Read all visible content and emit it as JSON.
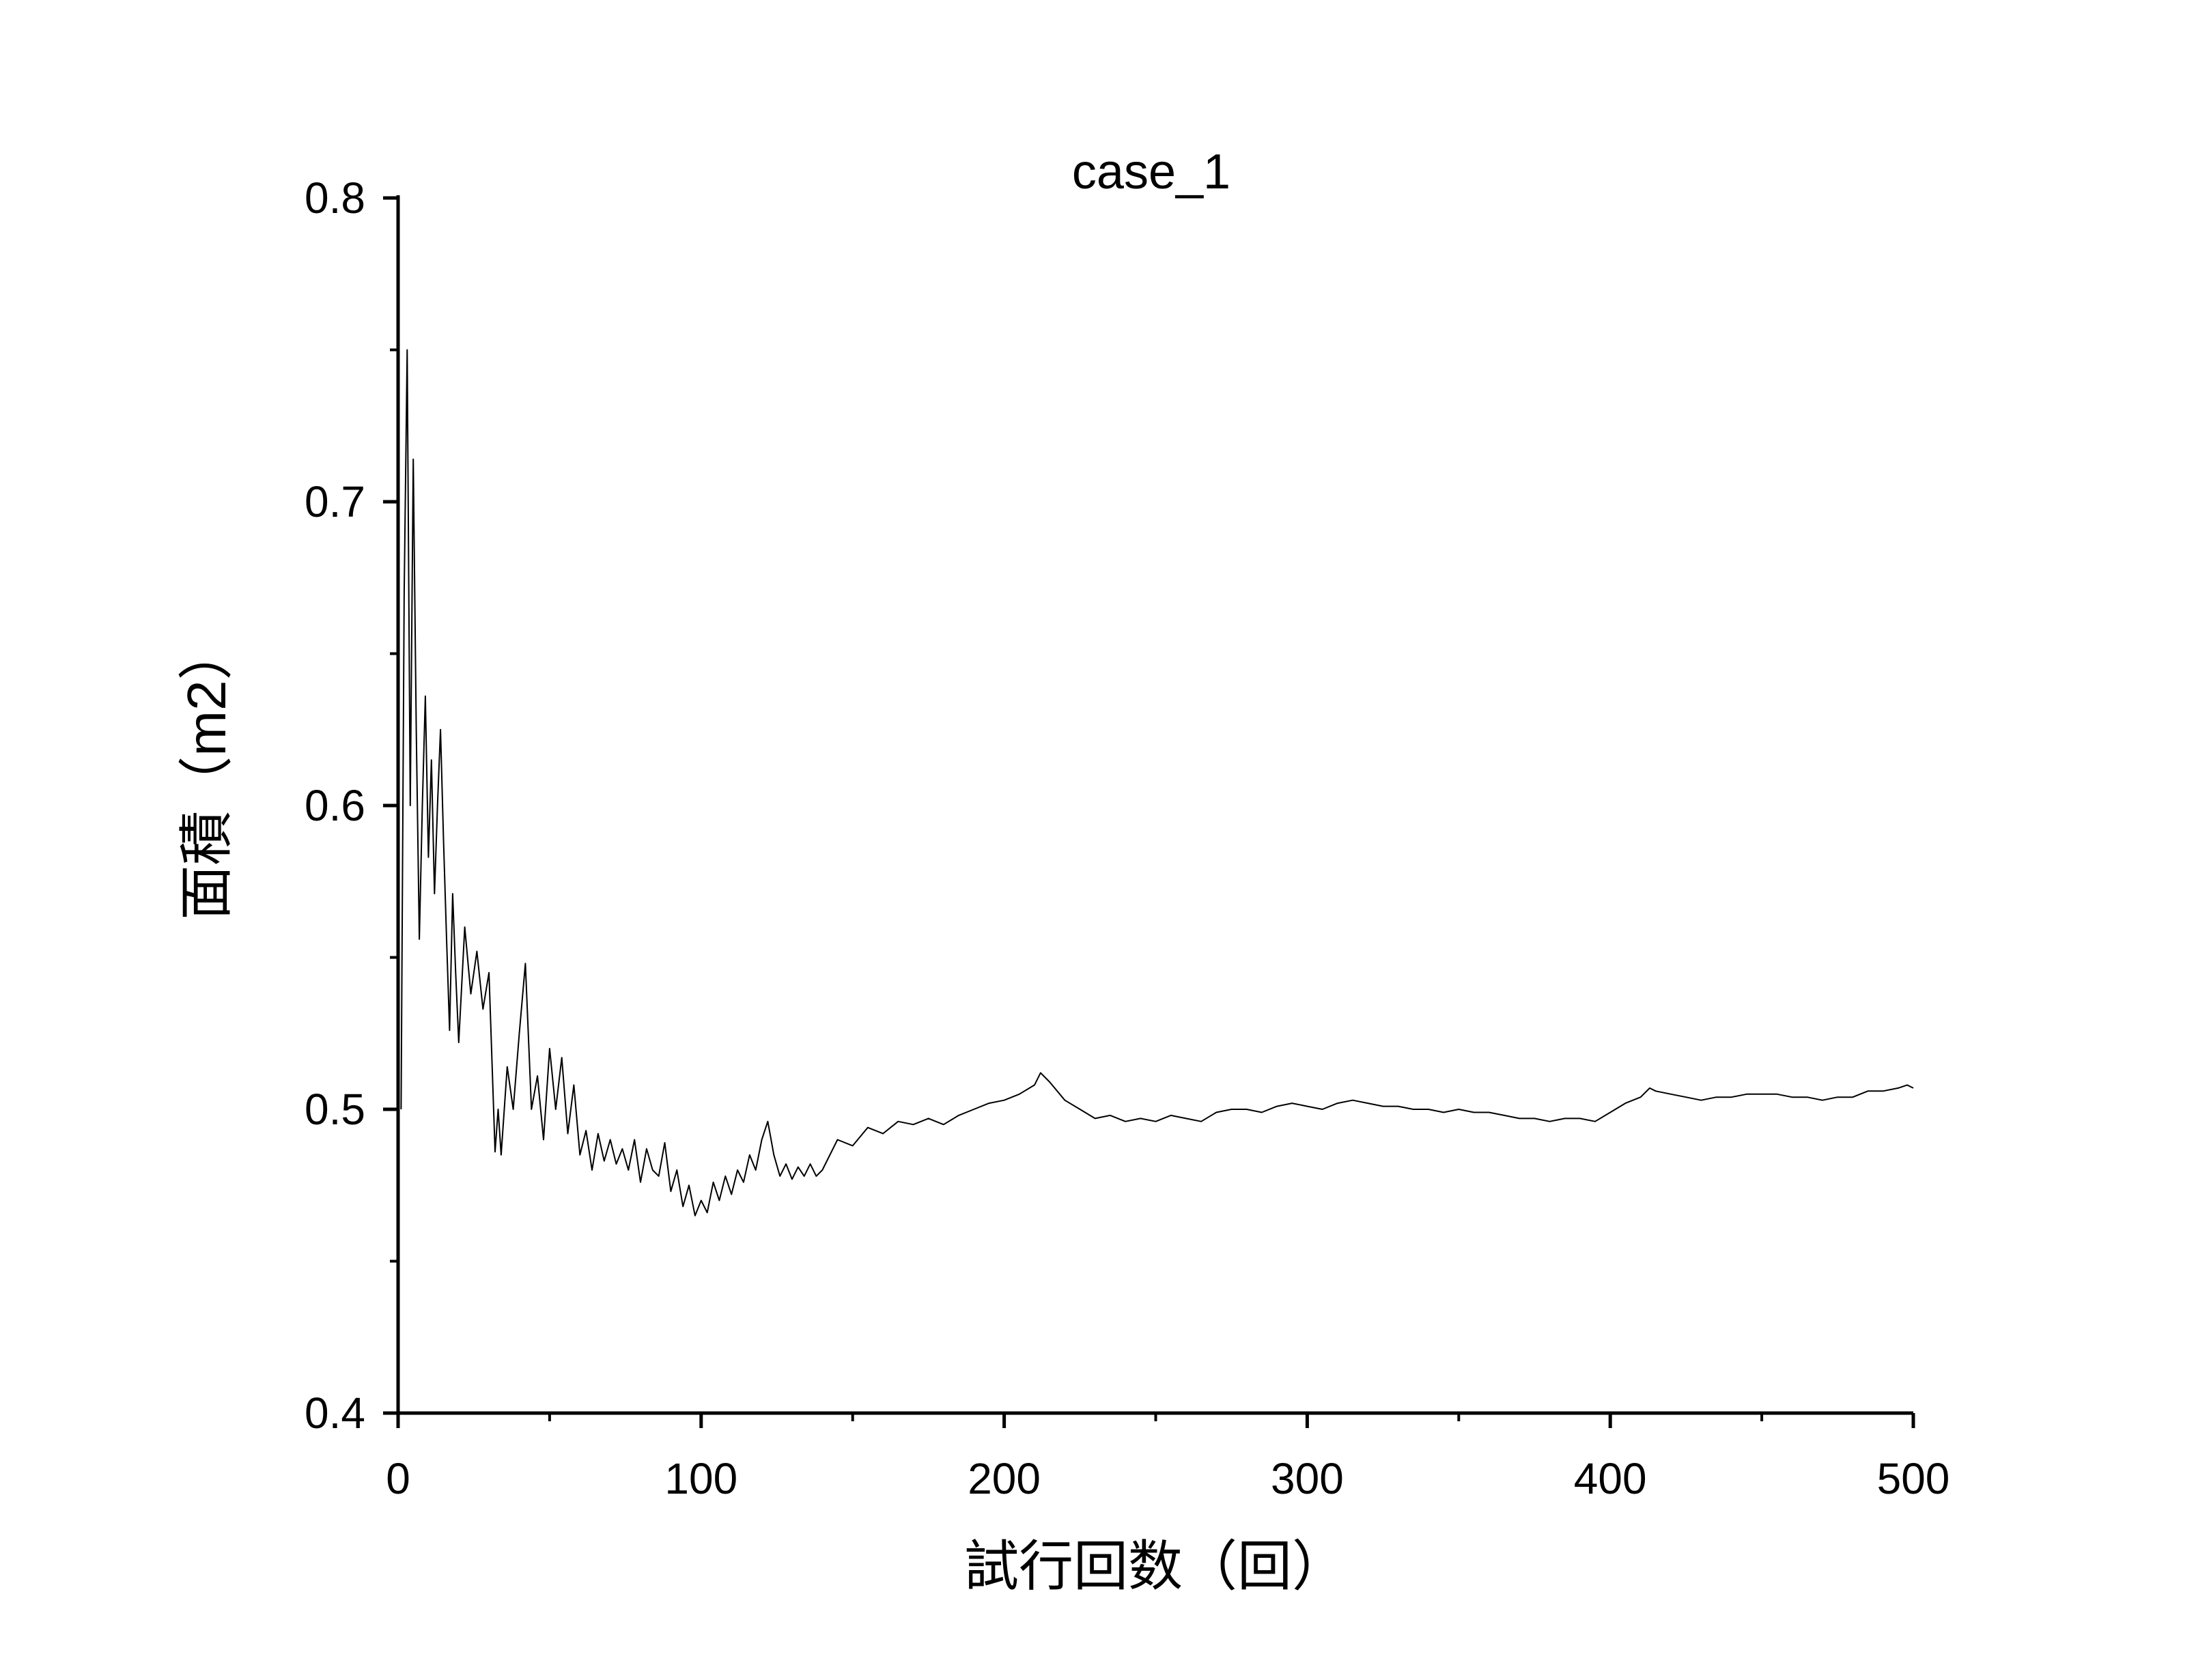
{
  "chart_data": {
    "type": "line",
    "title": "case_1",
    "xlabel": "試行回数（回）",
    "ylabel": "面積（m2）",
    "xlim": [
      0,
      500
    ],
    "ylim": [
      0.4,
      0.8
    ],
    "xticks": [
      0,
      100,
      200,
      300,
      400,
      500
    ],
    "xtick_labels": [
      "0",
      "100",
      "200",
      "300",
      "400",
      "500"
    ],
    "yticks": [
      0.4,
      0.5,
      0.6,
      0.7,
      0.8
    ],
    "ytick_labels": [
      "0.4",
      "0.5",
      "0.6",
      "0.7",
      "0.8"
    ],
    "grid": false,
    "line_color": "#000000",
    "series": [
      {
        "x": [
          1,
          2,
          3,
          4,
          5,
          6,
          7,
          8,
          9,
          10,
          11,
          12,
          13,
          14,
          15,
          16,
          17,
          18,
          19,
          20,
          22,
          24,
          26,
          28,
          30,
          32,
          33,
          34,
          36,
          38,
          40,
          42,
          44,
          46,
          48,
          50,
          52,
          54,
          56,
          58,
          60,
          62,
          64,
          66,
          68,
          70,
          72,
          74,
          76,
          78,
          80,
          82,
          84,
          86,
          88,
          90,
          92,
          94,
          96,
          98,
          100,
          102,
          104,
          106,
          108,
          110,
          112,
          114,
          116,
          118,
          120,
          122,
          124,
          126,
          128,
          130,
          132,
          134,
          136,
          138,
          140,
          145,
          150,
          155,
          160,
          165,
          170,
          175,
          180,
          185,
          190,
          195,
          200,
          205,
          210,
          212,
          215,
          220,
          225,
          230,
          235,
          240,
          245,
          250,
          255,
          260,
          265,
          270,
          275,
          280,
          285,
          290,
          295,
          300,
          305,
          310,
          315,
          320,
          325,
          330,
          335,
          340,
          345,
          350,
          355,
          360,
          365,
          370,
          375,
          380,
          385,
          390,
          395,
          400,
          405,
          410,
          413,
          415,
          420,
          425,
          430,
          435,
          440,
          445,
          450,
          455,
          460,
          465,
          470,
          475,
          480,
          485,
          490,
          495,
          498,
          500
        ],
        "y": [
          0.5,
          0.67,
          0.75,
          0.6,
          0.714,
          0.625,
          0.556,
          0.6,
          0.636,
          0.583,
          0.615,
          0.571,
          0.6,
          0.625,
          0.588,
          0.556,
          0.526,
          0.571,
          0.545,
          0.522,
          0.56,
          0.538,
          0.552,
          0.533,
          0.545,
          0.486,
          0.5,
          0.485,
          0.514,
          0.5,
          0.525,
          0.548,
          0.5,
          0.511,
          0.49,
          0.52,
          0.5,
          0.517,
          0.492,
          0.508,
          0.485,
          0.493,
          0.48,
          0.492,
          0.483,
          0.49,
          0.482,
          0.487,
          0.48,
          0.49,
          0.476,
          0.487,
          0.48,
          0.478,
          0.489,
          0.473,
          0.48,
          0.468,
          0.475,
          0.465,
          0.47,
          0.466,
          0.476,
          0.47,
          0.478,
          0.472,
          0.48,
          0.476,
          0.485,
          0.48,
          0.49,
          0.496,
          0.485,
          0.478,
          0.482,
          0.477,
          0.481,
          0.478,
          0.482,
          0.478,
          0.48,
          0.49,
          0.488,
          0.494,
          0.492,
          0.496,
          0.495,
          0.497,
          0.495,
          0.498,
          0.5,
          0.502,
          0.503,
          0.505,
          0.508,
          0.512,
          0.509,
          0.503,
          0.5,
          0.497,
          0.498,
          0.496,
          0.497,
          0.496,
          0.498,
          0.497,
          0.496,
          0.499,
          0.5,
          0.5,
          0.499,
          0.501,
          0.502,
          0.501,
          0.5,
          0.502,
          0.503,
          0.502,
          0.501,
          0.501,
          0.5,
          0.5,
          0.499,
          0.5,
          0.499,
          0.499,
          0.498,
          0.497,
          0.497,
          0.496,
          0.497,
          0.497,
          0.496,
          0.499,
          0.502,
          0.504,
          0.507,
          0.506,
          0.505,
          0.504,
          0.503,
          0.504,
          0.504,
          0.505,
          0.505,
          0.505,
          0.504,
          0.504,
          0.503,
          0.504,
          0.504,
          0.506,
          0.506,
          0.507,
          0.508,
          0.507
        ]
      }
    ]
  }
}
